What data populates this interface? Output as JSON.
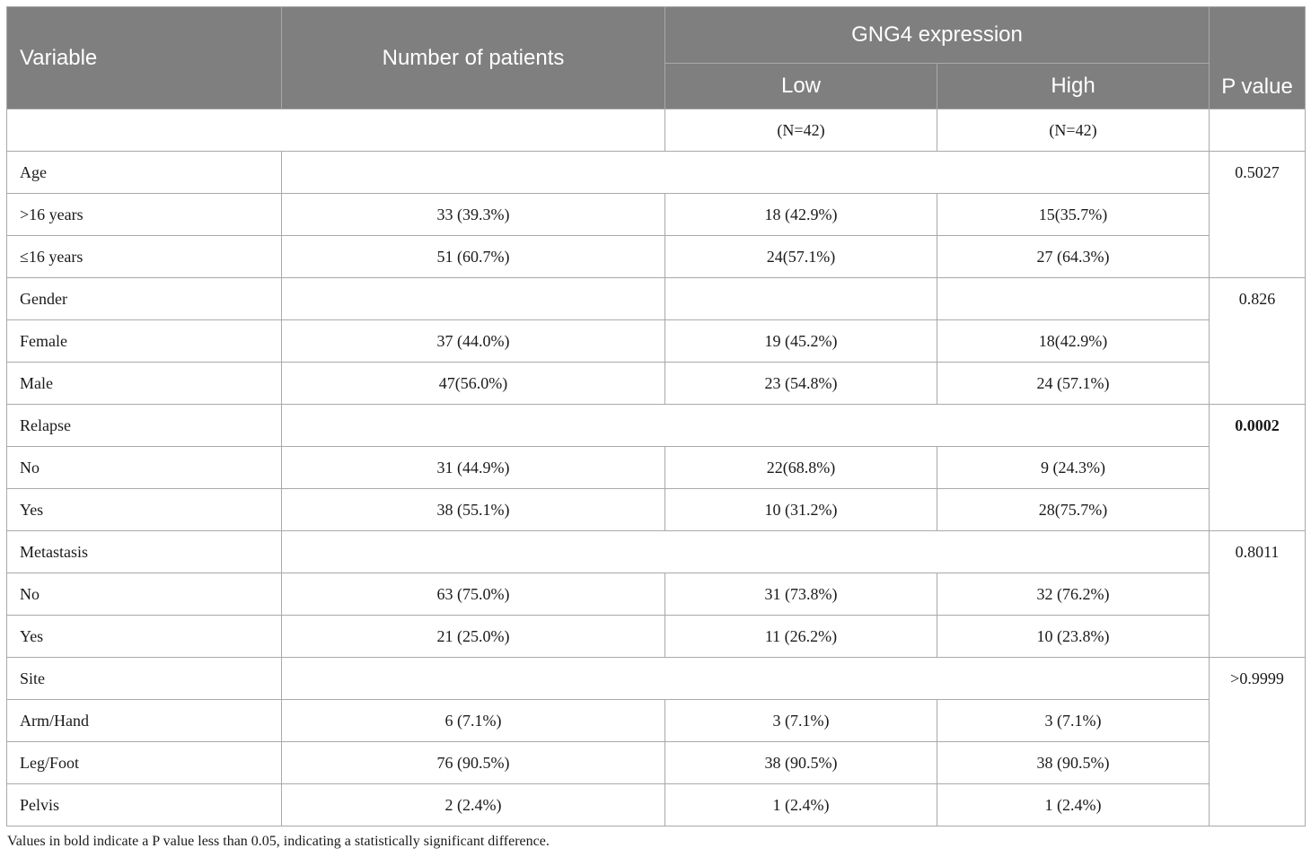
{
  "header": {
    "variable": "Variable",
    "number_of_patients": "Number of patients",
    "gng4_expression": "GNG4 expression",
    "low": "Low",
    "high": "High",
    "p_value": "P value"
  },
  "subheader": {
    "number": "",
    "low_n": "(N=42)",
    "high_n": "(N=42)"
  },
  "groups": [
    {
      "name": "Age",
      "p_value": "0.5027",
      "significant": false,
      "rows": [
        {
          "label": ">16 years",
          "total": "33 (39.3%)",
          "low": "18 (42.9%)",
          "high": "15(35.7%)"
        },
        {
          "label": "≤16 years",
          "total": "51 (60.7%)",
          "low": "24(57.1%)",
          "high": "27 (64.3%)"
        }
      ]
    },
    {
      "name": "Gender",
      "p_value": "0.826",
      "significant": false,
      "rows": [
        {
          "label": "Female",
          "total": "37 (44.0%)",
          "low": "19 (45.2%)",
          "high": "18(42.9%)"
        },
        {
          "label": "Male",
          "total": "47(56.0%)",
          "low": "23 (54.8%)",
          "high": "24 (57.1%)"
        }
      ]
    },
    {
      "name": "Relapse",
      "p_value": "0.0002",
      "significant": true,
      "rows": [
        {
          "label": "No",
          "total": "31 (44.9%)",
          "low": "22(68.8%)",
          "high": "9 (24.3%)"
        },
        {
          "label": "Yes",
          "total": "38 (55.1%)",
          "low": "10 (31.2%)",
          "high": "28(75.7%)"
        }
      ]
    },
    {
      "name": "Metastasis",
      "p_value": "0.8011",
      "significant": false,
      "rows": [
        {
          "label": "No",
          "total": "63 (75.0%)",
          "low": "31 (73.8%)",
          "high": "32 (76.2%)"
        },
        {
          "label": "Yes",
          "total": "21 (25.0%)",
          "low": "11 (26.2%)",
          "high": "10 (23.8%)"
        }
      ]
    },
    {
      "name": "Site",
      "p_value": ">0.9999",
      "significant": false,
      "rows": [
        {
          "label": "Arm/Hand",
          "total": "6 (7.1%)",
          "low": "3 (7.1%)",
          "high": "3 (7.1%)"
        },
        {
          "label": "Leg/Foot",
          "total": "76 (90.5%)",
          "low": "38 (90.5%)",
          "high": "38 (90.5%)"
        },
        {
          "label": "Pelvis",
          "total": "2 (2.4%)",
          "low": "1 (2.4%)",
          "high": "1 (2.4%)"
        }
      ]
    }
  ],
  "footnote": "Values in bold indicate a P value less than 0.05, indicating a statistically significant difference."
}
